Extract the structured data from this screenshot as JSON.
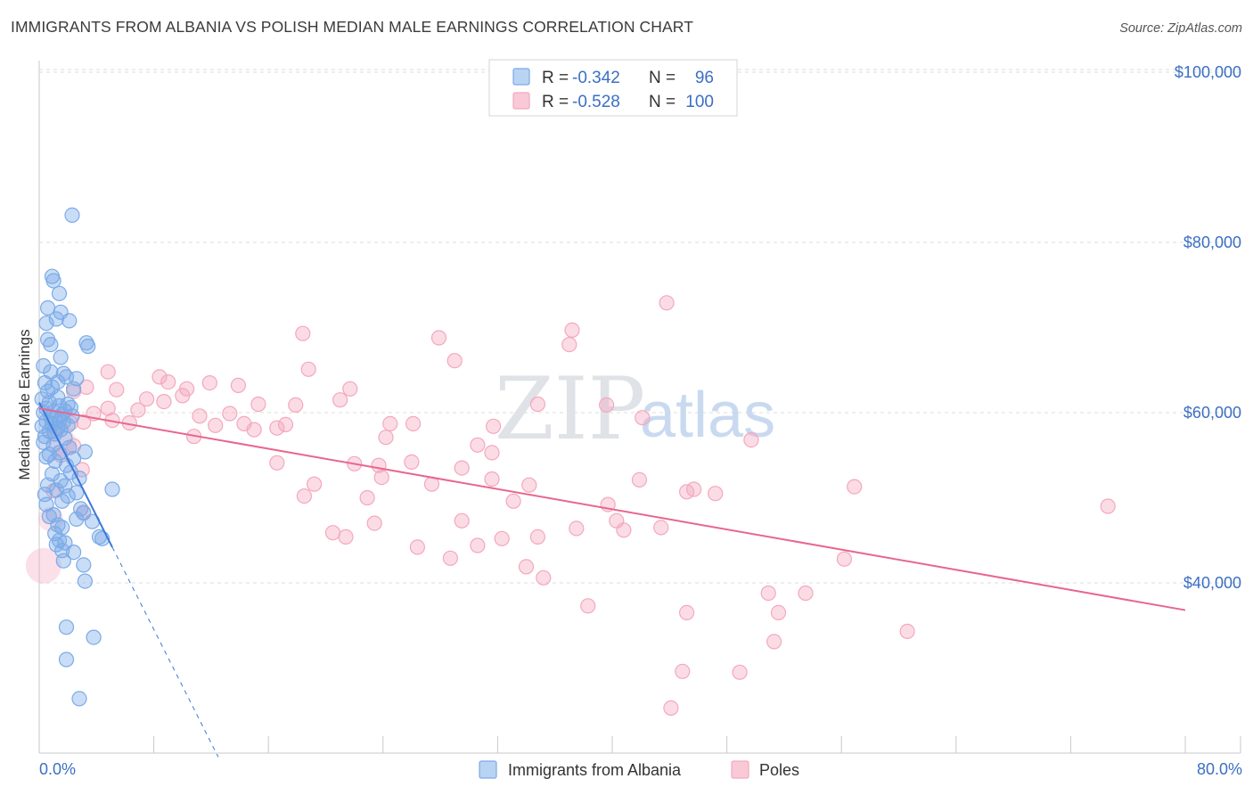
{
  "title": "IMMIGRANTS FROM ALBANIA VS POLISH MEDIAN MALE EARNINGS CORRELATION CHART",
  "source": "Source: ZipAtlas.com",
  "watermark": {
    "zip": "ZIP",
    "atlas": "atlas"
  },
  "legend": {
    "rows": [
      {
        "r_label": "R =",
        "r_value": "-0.342",
        "n_label": "N =",
        "n_value": "96",
        "color": "#7aabe8"
      },
      {
        "r_label": "R =",
        "r_value": "-0.528",
        "n_label": "N =",
        "n_value": "100",
        "color": "#f4a7bf"
      }
    ]
  },
  "chart_data": {
    "type": "scatter",
    "title": "IMMIGRANTS FROM ALBANIA VS POLISH MEDIAN MALE EARNINGS CORRELATION CHART",
    "ylabel": "Median Male Earnings",
    "xlabel": "",
    "xlim": [
      0,
      80
    ],
    "ylim": [
      21000,
      103000
    ],
    "y_ticks": [
      40000,
      60000,
      80000,
      100000
    ],
    "y_tick_labels": [
      "$40,000",
      "$60,000",
      "$80,000",
      "$100,000"
    ],
    "x_tick_labels": [
      "0.0%",
      "80.0%"
    ],
    "series": [
      {
        "name": "Immigrants from Albania",
        "color": "#7aabe8",
        "stroke": "#3b78d8",
        "trend": {
          "x0": 0,
          "y0": 61200,
          "x1": 5.1,
          "y1": 44200,
          "dashed_to_x": 12.5
        },
        "points": [
          [
            2.3,
            83200
          ],
          [
            0.9,
            76000
          ],
          [
            1.0,
            75500
          ],
          [
            1.4,
            74000
          ],
          [
            0.6,
            72300
          ],
          [
            1.5,
            71800
          ],
          [
            1.2,
            71000
          ],
          [
            2.1,
            70800
          ],
          [
            0.5,
            70500
          ],
          [
            0.6,
            68600
          ],
          [
            3.3,
            68200
          ],
          [
            0.8,
            68000
          ],
          [
            3.4,
            67800
          ],
          [
            1.5,
            66500
          ],
          [
            0.3,
            65500
          ],
          [
            0.8,
            64800
          ],
          [
            1.7,
            64600
          ],
          [
            1.9,
            64200
          ],
          [
            2.6,
            64000
          ],
          [
            1.3,
            63600
          ],
          [
            0.4,
            63500
          ],
          [
            0.9,
            63000
          ],
          [
            2.4,
            62800
          ],
          [
            0.6,
            62500
          ],
          [
            1.3,
            61800
          ],
          [
            0.2,
            61600
          ],
          [
            0.7,
            61200
          ],
          [
            2.0,
            61000
          ],
          [
            1.4,
            60800
          ],
          [
            2.2,
            60600
          ],
          [
            0.5,
            60500
          ],
          [
            1.8,
            60200
          ],
          [
            1.0,
            60100
          ],
          [
            0.3,
            60000
          ],
          [
            1.6,
            59800
          ],
          [
            2.3,
            59600
          ],
          [
            0.8,
            59500
          ],
          [
            1.1,
            59300
          ],
          [
            1.4,
            59100
          ],
          [
            0.5,
            59000
          ],
          [
            1.7,
            58900
          ],
          [
            0.9,
            58700
          ],
          [
            2.0,
            58500
          ],
          [
            0.2,
            58400
          ],
          [
            1.3,
            58200
          ],
          [
            1.5,
            58000
          ],
          [
            0.7,
            57800
          ],
          [
            1.1,
            57500
          ],
          [
            0.4,
            57200
          ],
          [
            1.8,
            57000
          ],
          [
            0.3,
            56500
          ],
          [
            1.0,
            56200
          ],
          [
            2.1,
            55900
          ],
          [
            3.2,
            55400
          ],
          [
            1.4,
            55300
          ],
          [
            0.7,
            55100
          ],
          [
            0.5,
            54800
          ],
          [
            2.4,
            54600
          ],
          [
            1.1,
            54300
          ],
          [
            1.9,
            53800
          ],
          [
            2.2,
            53000
          ],
          [
            0.9,
            52800
          ],
          [
            2.8,
            52300
          ],
          [
            1.5,
            52000
          ],
          [
            0.6,
            51500
          ],
          [
            1.8,
            51400
          ],
          [
            5.1,
            51000
          ],
          [
            1.2,
            50900
          ],
          [
            2.6,
            50600
          ],
          [
            0.4,
            50400
          ],
          [
            2.0,
            50200
          ],
          [
            1.6,
            49600
          ],
          [
            0.5,
            49200
          ],
          [
            2.9,
            48700
          ],
          [
            3.1,
            48200
          ],
          [
            1.0,
            48000
          ],
          [
            0.7,
            47800
          ],
          [
            2.6,
            47500
          ],
          [
            3.7,
            47200
          ],
          [
            1.3,
            46800
          ],
          [
            1.6,
            46500
          ],
          [
            1.1,
            45800
          ],
          [
            4.4,
            45200
          ],
          [
            1.4,
            45000
          ],
          [
            1.8,
            44700
          ],
          [
            1.2,
            44500
          ],
          [
            1.6,
            43800
          ],
          [
            2.4,
            43600
          ],
          [
            1.7,
            42600
          ],
          [
            3.1,
            42100
          ],
          [
            3.2,
            40200
          ],
          [
            1.9,
            34800
          ],
          [
            3.8,
            33600
          ],
          [
            1.9,
            31000
          ],
          [
            2.8,
            26400
          ],
          [
            4.2,
            45400
          ]
        ]
      },
      {
        "name": "Poles",
        "color": "#f4a7bf",
        "stroke": "#e8668f",
        "trend": {
          "x0": 0,
          "y0": 60500,
          "x1": 80,
          "y1": 36800
        },
        "points": [
          [
            43.8,
            72900
          ],
          [
            37.2,
            69700
          ],
          [
            18.4,
            69300
          ],
          [
            37.0,
            68000
          ],
          [
            27.9,
            68800
          ],
          [
            29.0,
            66100
          ],
          [
            18.8,
            65100
          ],
          [
            4.8,
            64800
          ],
          [
            8.4,
            64200
          ],
          [
            9.0,
            63600
          ],
          [
            11.9,
            63500
          ],
          [
            13.9,
            63200
          ],
          [
            3.3,
            63000
          ],
          [
            10.3,
            62800
          ],
          [
            21.7,
            62800
          ],
          [
            5.4,
            62700
          ],
          [
            2.4,
            62500
          ],
          [
            10.0,
            62000
          ],
          [
            7.5,
            61600
          ],
          [
            21.0,
            61500
          ],
          [
            8.7,
            61300
          ],
          [
            15.3,
            61000
          ],
          [
            34.8,
            61000
          ],
          [
            17.9,
            60900
          ],
          [
            39.6,
            60900
          ],
          [
            4.8,
            60500
          ],
          [
            6.9,
            60300
          ],
          [
            3.8,
            59900
          ],
          [
            13.3,
            59900
          ],
          [
            11.2,
            59600
          ],
          [
            42.1,
            59400
          ],
          [
            5.1,
            59100
          ],
          [
            3.1,
            58900
          ],
          [
            2.2,
            58800
          ],
          [
            6.3,
            58800
          ],
          [
            14.3,
            58700
          ],
          [
            24.5,
            58700
          ],
          [
            26.1,
            58700
          ],
          [
            17.2,
            58600
          ],
          [
            12.3,
            58500
          ],
          [
            31.7,
            58400
          ],
          [
            16.6,
            58200
          ],
          [
            15.0,
            58000
          ],
          [
            1.0,
            57800
          ],
          [
            10.8,
            57200
          ],
          [
            24.2,
            57100
          ],
          [
            49.7,
            56800
          ],
          [
            2.4,
            56100
          ],
          [
            30.6,
            56200
          ],
          [
            31.6,
            55300
          ],
          [
            1.5,
            55000
          ],
          [
            22.0,
            54000
          ],
          [
            26.0,
            54200
          ],
          [
            16.6,
            54100
          ],
          [
            23.7,
            53800
          ],
          [
            29.5,
            53500
          ],
          [
            3.0,
            53300
          ],
          [
            23.9,
            52400
          ],
          [
            31.6,
            52200
          ],
          [
            41.9,
            52100
          ],
          [
            27.4,
            51600
          ],
          [
            19.2,
            51600
          ],
          [
            56.9,
            51300
          ],
          [
            34.2,
            51500
          ],
          [
            1.0,
            50800
          ],
          [
            45.7,
            51000
          ],
          [
            45.2,
            50700
          ],
          [
            47.2,
            50500
          ],
          [
            18.5,
            50200
          ],
          [
            22.9,
            50000
          ],
          [
            33.1,
            49600
          ],
          [
            39.7,
            49200
          ],
          [
            74.6,
            49000
          ],
          [
            3.1,
            48300
          ],
          [
            40.3,
            47300
          ],
          [
            29.5,
            47300
          ],
          [
            23.4,
            47000
          ],
          [
            40.8,
            46200
          ],
          [
            37.5,
            46400
          ],
          [
            43.4,
            46500
          ],
          [
            20.5,
            45900
          ],
          [
            21.4,
            45400
          ],
          [
            34.8,
            45400
          ],
          [
            32.3,
            45200
          ],
          [
            30.6,
            44400
          ],
          [
            26.4,
            44200
          ],
          [
            28.7,
            42900
          ],
          [
            56.2,
            42800
          ],
          [
            34.0,
            41900
          ],
          [
            35.2,
            40600
          ],
          [
            53.5,
            38800
          ],
          [
            50.9,
            38800
          ],
          [
            38.3,
            37300
          ],
          [
            45.2,
            36500
          ],
          [
            51.6,
            36500
          ],
          [
            60.6,
            34300
          ],
          [
            51.3,
            33100
          ],
          [
            44.9,
            29600
          ],
          [
            48.9,
            29500
          ],
          [
            44.1,
            25300
          ]
        ]
      }
    ]
  },
  "bottom_legend": [
    {
      "label": "Immigrants from Albania",
      "color": "#b9d3f3",
      "stroke": "#7aabe8"
    },
    {
      "label": "Poles",
      "color": "#fac9d8",
      "stroke": "#f4a7bf"
    }
  ]
}
